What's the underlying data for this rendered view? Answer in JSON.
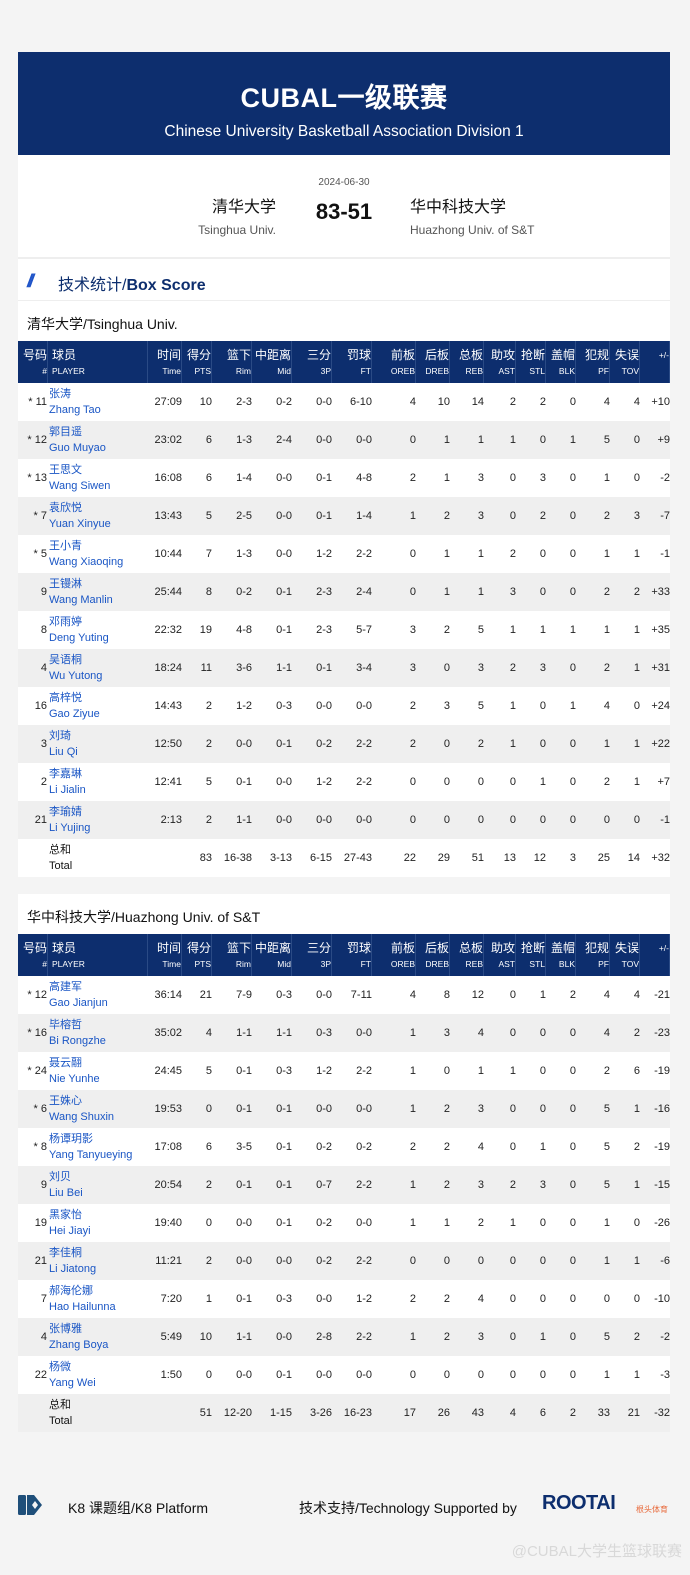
{
  "header": {
    "title": "CUBAL一级联赛",
    "subtitle": "Chinese University Basketball Association Division 1"
  },
  "match": {
    "date": "2024-06-30",
    "score": "83-51",
    "home_cn": "清华大学",
    "home_en": "Tsinghua Univ.",
    "away_cn": "华中科技大学",
    "away_en": "Huazhong Univ. of S&T"
  },
  "section": {
    "title_cn": "技术统计/",
    "title_en": "Box Score",
    "icon": "double-slash-icon"
  },
  "columns": [
    [
      "号码",
      "#"
    ],
    [
      "球员",
      "PLAYER"
    ],
    [
      "时间",
      "Time"
    ],
    [
      "得分",
      "PTS"
    ],
    [
      "篮下",
      "Rim"
    ],
    [
      "中距离",
      "Mid"
    ],
    [
      "三分",
      "3P"
    ],
    [
      "罚球",
      "FT"
    ],
    [
      "前板",
      "OREB"
    ],
    [
      "后板",
      "DREB"
    ],
    [
      "总板",
      "REB"
    ],
    [
      "助攻",
      "AST"
    ],
    [
      "抢断",
      "STL"
    ],
    [
      "盖帽",
      "BLK"
    ],
    [
      "犯规",
      "PF"
    ],
    [
      "失误",
      "TOV"
    ],
    [
      "",
      "+/-"
    ]
  ],
  "teams": [
    {
      "title": "清华大学/Tsinghua Univ.",
      "players": [
        [
          "* 11",
          "张涛",
          "Zhang Tao",
          "27:09",
          "10",
          "2-3",
          "0-2",
          "0-0",
          "6-10",
          "4",
          "10",
          "14",
          "2",
          "2",
          "0",
          "4",
          "4",
          "+10"
        ],
        [
          "* 12",
          "郭目遥",
          "Guo Muyao",
          "23:02",
          "6",
          "1-3",
          "2-4",
          "0-0",
          "0-0",
          "0",
          "1",
          "1",
          "1",
          "0",
          "1",
          "5",
          "0",
          "+9"
        ],
        [
          "* 13",
          "王思文",
          "Wang Siwen",
          "16:08",
          "6",
          "1-4",
          "0-0",
          "0-1",
          "4-8",
          "2",
          "1",
          "3",
          "0",
          "3",
          "0",
          "1",
          "0",
          "-2"
        ],
        [
          "*  7",
          "袁欣悦",
          "Yuan Xinyue",
          "13:43",
          "5",
          "2-5",
          "0-0",
          "0-1",
          "1-4",
          "1",
          "2",
          "3",
          "0",
          "2",
          "0",
          "2",
          "3",
          "-7"
        ],
        [
          "*  5",
          "王小青",
          "Wang Xiaoqing",
          "10:44",
          "7",
          "1-3",
          "0-0",
          "1-2",
          "2-2",
          "0",
          "1",
          "1",
          "2",
          "0",
          "0",
          "1",
          "1",
          "-1"
        ],
        [
          "9",
          "王镘淋",
          "Wang Manlin",
          "25:44",
          "8",
          "0-2",
          "0-1",
          "2-3",
          "2-4",
          "0",
          "1",
          "1",
          "3",
          "0",
          "0",
          "2",
          "2",
          "+33"
        ],
        [
          "8",
          "邓雨婷",
          "Deng Yuting",
          "22:32",
          "19",
          "4-8",
          "0-1",
          "2-3",
          "5-7",
          "3",
          "2",
          "5",
          "1",
          "1",
          "1",
          "1",
          "1",
          "+35"
        ],
        [
          "4",
          "吴语桐",
          "Wu Yutong",
          "18:24",
          "11",
          "3-6",
          "1-1",
          "0-1",
          "3-4",
          "3",
          "0",
          "3",
          "2",
          "3",
          "0",
          "2",
          "1",
          "+31"
        ],
        [
          "16",
          "高梓悦",
          "Gao Ziyue",
          "14:43",
          "2",
          "1-2",
          "0-3",
          "0-0",
          "0-0",
          "2",
          "3",
          "5",
          "1",
          "0",
          "1",
          "4",
          "0",
          "+24"
        ],
        [
          "3",
          "刘琦",
          "Liu Qi",
          "12:50",
          "2",
          "0-0",
          "0-1",
          "0-2",
          "2-2",
          "2",
          "0",
          "2",
          "1",
          "0",
          "0",
          "1",
          "1",
          "+22"
        ],
        [
          "2",
          "李嘉琳",
          "Li Jialin",
          "12:41",
          "5",
          "0-1",
          "0-0",
          "1-2",
          "2-2",
          "0",
          "0",
          "0",
          "0",
          "1",
          "0",
          "2",
          "1",
          "+7"
        ],
        [
          "21",
          "李瑜婧",
          "Li Yujing",
          "2:13",
          "2",
          "1-1",
          "0-0",
          "0-0",
          "0-0",
          "0",
          "0",
          "0",
          "0",
          "0",
          "0",
          "0",
          "0",
          "-1"
        ]
      ],
      "total": [
        "",
        "总和",
        "Total",
        "",
        "83",
        "16-38",
        "3-13",
        "6-15",
        "27-43",
        "22",
        "29",
        "51",
        "13",
        "12",
        "3",
        "25",
        "14",
        "+32"
      ]
    },
    {
      "title": "华中科技大学/Huazhong Univ. of S&T",
      "players": [
        [
          "* 12",
          "高建军",
          "Gao Jianjun",
          "36:14",
          "21",
          "7-9",
          "0-3",
          "0-0",
          "7-11",
          "4",
          "8",
          "12",
          "0",
          "1",
          "2",
          "4",
          "4",
          "-21"
        ],
        [
          "* 16",
          "毕榕哲",
          "Bi Rongzhe",
          "35:02",
          "4",
          "1-1",
          "1-1",
          "0-3",
          "0-0",
          "1",
          "3",
          "4",
          "0",
          "0",
          "0",
          "4",
          "2",
          "-23"
        ],
        [
          "* 24",
          "聂云翮",
          "Nie Yunhe",
          "24:45",
          "5",
          "0-1",
          "0-3",
          "1-2",
          "2-2",
          "1",
          "0",
          "1",
          "1",
          "0",
          "0",
          "2",
          "6",
          "-19"
        ],
        [
          "*  6",
          "王姝心",
          "Wang Shuxin",
          "19:53",
          "0",
          "0-1",
          "0-1",
          "0-0",
          "0-0",
          "1",
          "2",
          "3",
          "0",
          "0",
          "0",
          "5",
          "1",
          "-16"
        ],
        [
          "*  8",
          "杨谭玥影",
          "Yang Tanyueying",
          "17:08",
          "6",
          "3-5",
          "0-1",
          "0-2",
          "0-2",
          "2",
          "2",
          "4",
          "0",
          "1",
          "0",
          "5",
          "2",
          "-19"
        ],
        [
          "9",
          "刘贝",
          "Liu Bei",
          "20:54",
          "2",
          "0-1",
          "0-1",
          "0-7",
          "2-2",
          "1",
          "2",
          "3",
          "2",
          "3",
          "0",
          "5",
          "1",
          "-15"
        ],
        [
          "19",
          "黑家怡",
          "Hei Jiayi",
          "19:40",
          "0",
          "0-0",
          "0-1",
          "0-2",
          "0-0",
          "1",
          "1",
          "2",
          "1",
          "0",
          "0",
          "1",
          "0",
          "-26"
        ],
        [
          "21",
          "李佳桐",
          "Li Jiatong",
          "11:21",
          "2",
          "0-0",
          "0-0",
          "0-2",
          "2-2",
          "0",
          "0",
          "0",
          "0",
          "0",
          "0",
          "1",
          "1",
          "-6"
        ],
        [
          "7",
          "郝海伦娜",
          "Hao Hailunna",
          "7:20",
          "1",
          "0-1",
          "0-3",
          "0-0",
          "1-2",
          "2",
          "2",
          "4",
          "0",
          "0",
          "0",
          "0",
          "0",
          "-10"
        ],
        [
          "4",
          "张博雅",
          "Zhang Boya",
          "5:49",
          "10",
          "1-1",
          "0-0",
          "2-8",
          "2-2",
          "1",
          "2",
          "3",
          "0",
          "1",
          "0",
          "5",
          "2",
          "-2"
        ],
        [
          "22",
          "杨微",
          "Yang Wei",
          "1:50",
          "0",
          "0-0",
          "0-1",
          "0-0",
          "0-0",
          "0",
          "0",
          "0",
          "0",
          "0",
          "0",
          "1",
          "1",
          "-3"
        ]
      ],
      "total": [
        "",
        "总和",
        "Total",
        "",
        "51",
        "12-20",
        "1-15",
        "3-26",
        "16-23",
        "17",
        "26",
        "43",
        "4",
        "6",
        "2",
        "33",
        "21",
        "-32"
      ]
    }
  ],
  "footer": {
    "k8_label": "K8 课题组/K8 Platform",
    "tech_label": "技术支持/Technology Supported by",
    "sponsor_logo": "ROOTAI",
    "sponsor_sub": "根头体育",
    "watermark": "@CUBAL大学生篮球联赛"
  },
  "colors": {
    "primary": "#0d2e6e",
    "accent": "#1f54c8",
    "link": "#1a56c5"
  }
}
